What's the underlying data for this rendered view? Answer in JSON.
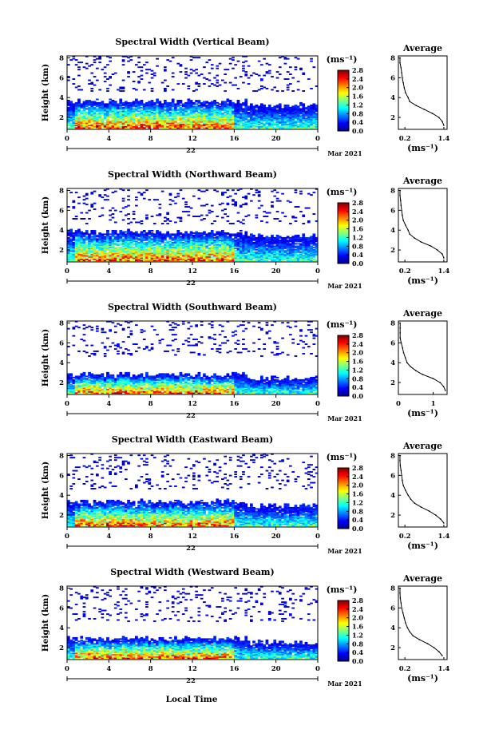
{
  "figure": {
    "xlabel_bottom": "Local Time",
    "day_label": "22",
    "month_label": "Mar 2021",
    "ylabel": "Height (km)",
    "unit_label": "(ms⁻¹)",
    "avg_title": "Average",
    "avg_xlabel": "(ms⁻¹)"
  },
  "colors": {
    "jet": [
      "#000080",
      "#0000ff",
      "#0080ff",
      "#00ffff",
      "#80ff80",
      "#ffff00",
      "#ff8000",
      "#ff0000",
      "#800000"
    ]
  },
  "chart_data": [
    {
      "type": "heatmap",
      "title": "Spectral Width (Vertical Beam)",
      "xlabel": "Local Time",
      "ylabel": "Height (km)",
      "xlim": [
        0,
        24
      ],
      "ylim": [
        0.8,
        8.2
      ],
      "xticks": [
        "0",
        "4",
        "8",
        "12",
        "16",
        "20",
        "0"
      ],
      "yticks": [
        "2",
        "4",
        "6",
        "8"
      ],
      "colorbar": {
        "label": "(ms⁻¹)",
        "range": [
          0,
          2.8
        ],
        "ticks": [
          "0.0",
          "0.4",
          "0.8",
          "1.2",
          "1.6",
          "2.0",
          "2.4",
          "2.8"
        ]
      },
      "layer_top_km": 3.6,
      "average": {
        "title": "Average",
        "xlabel": "(ms⁻¹)",
        "xlim": [
          0,
          1.5
        ],
        "xticks": [
          "0.2",
          "1.4"
        ],
        "ylim": [
          0.8,
          8.2
        ],
        "yticks": [
          "2",
          "4",
          "6",
          "8"
        ],
        "profile": [
          {
            "h": 1.2,
            "v": 1.4
          },
          {
            "h": 1.6,
            "v": 1.35
          },
          {
            "h": 2.0,
            "v": 1.25
          },
          {
            "h": 2.4,
            "v": 1.05
          },
          {
            "h": 2.8,
            "v": 0.8
          },
          {
            "h": 3.2,
            "v": 0.55
          },
          {
            "h": 3.6,
            "v": 0.35
          },
          {
            "h": 4.0,
            "v": 0.3
          },
          {
            "h": 4.5,
            "v": 0.22
          },
          {
            "h": 5.0,
            "v": 0.18
          },
          {
            "h": 5.5,
            "v": 0.15
          },
          {
            "h": 6.0,
            "v": 0.12
          },
          {
            "h": 6.5,
            "v": 0.1
          },
          {
            "h": 7.0,
            "v": 0.08
          },
          {
            "h": 7.5,
            "v": 0.05
          },
          {
            "h": 8.0,
            "v": 0.05
          }
        ]
      }
    },
    {
      "type": "heatmap",
      "title": "Spectral Width (Northward Beam)",
      "xlabel": "Local Time",
      "ylabel": "Height (km)",
      "xlim": [
        0,
        24
      ],
      "ylim": [
        0.8,
        8.2
      ],
      "xticks": [
        "0",
        "4",
        "8",
        "12",
        "16",
        "20",
        "0"
      ],
      "yticks": [
        "2",
        "4",
        "6",
        "8"
      ],
      "colorbar": {
        "label": "(ms⁻¹)",
        "range": [
          0,
          2.8
        ],
        "ticks": [
          "0.0",
          "0.4",
          "0.8",
          "1.2",
          "1.6",
          "2.0",
          "2.4",
          "2.8"
        ]
      },
      "layer_top_km": 3.8,
      "average": {
        "title": "Average",
        "xlabel": "(ms⁻¹)",
        "xlim": [
          0,
          1.5
        ],
        "xticks": [
          "0.2",
          "1.4"
        ],
        "ylim": [
          0.8,
          8.2
        ],
        "yticks": [
          "2",
          "4",
          "6",
          "8"
        ],
        "profile": [
          {
            "h": 1.2,
            "v": 1.4
          },
          {
            "h": 1.6,
            "v": 1.35
          },
          {
            "h": 2.0,
            "v": 1.2
          },
          {
            "h": 2.4,
            "v": 1.0
          },
          {
            "h": 2.8,
            "v": 0.7
          },
          {
            "h": 3.2,
            "v": 0.5
          },
          {
            "h": 3.6,
            "v": 0.35
          },
          {
            "h": 4.0,
            "v": 0.3
          },
          {
            "h": 4.5,
            "v": 0.22
          },
          {
            "h": 5.0,
            "v": 0.15
          },
          {
            "h": 5.5,
            "v": 0.12
          },
          {
            "h": 6.0,
            "v": 0.1
          },
          {
            "h": 6.5,
            "v": 0.08
          },
          {
            "h": 7.0,
            "v": 0.07
          },
          {
            "h": 7.5,
            "v": 0.05
          },
          {
            "h": 8.0,
            "v": 0.05
          }
        ]
      }
    },
    {
      "type": "heatmap",
      "title": "Spectral Width (Southward Beam)",
      "xlabel": "Local Time",
      "ylabel": "Height (km)",
      "xlim": [
        0,
        24
      ],
      "ylim": [
        0.8,
        8.2
      ],
      "xticks": [
        "0",
        "4",
        "8",
        "12",
        "16",
        "20",
        "0"
      ],
      "yticks": [
        "2",
        "4",
        "6",
        "8"
      ],
      "colorbar": {
        "label": "(ms⁻¹)",
        "range": [
          0,
          2.8
        ],
        "ticks": [
          "0.0",
          "0.4",
          "0.8",
          "1.2",
          "1.6",
          "2.0",
          "2.4",
          "2.8"
        ]
      },
      "layer_top_km": 2.8,
      "average": {
        "title": "Average",
        "xlabel": "(ms⁻¹)",
        "xlim": [
          0,
          1.4
        ],
        "xticks": [
          "0",
          "1"
        ],
        "ylim": [
          0.8,
          8.2
        ],
        "yticks": [
          "2",
          "4",
          "6",
          "8"
        ],
        "profile": [
          {
            "h": 1.2,
            "v": 1.35
          },
          {
            "h": 1.6,
            "v": 1.3
          },
          {
            "h": 2.0,
            "v": 1.2
          },
          {
            "h": 2.4,
            "v": 1.0
          },
          {
            "h": 2.8,
            "v": 0.7
          },
          {
            "h": 3.2,
            "v": 0.5
          },
          {
            "h": 3.6,
            "v": 0.35
          },
          {
            "h": 4.0,
            "v": 0.25
          },
          {
            "h": 4.5,
            "v": 0.2
          },
          {
            "h": 5.0,
            "v": 0.15
          },
          {
            "h": 5.5,
            "v": 0.12
          },
          {
            "h": 6.0,
            "v": 0.08
          },
          {
            "h": 6.5,
            "v": 0.05
          },
          {
            "h": 7.0,
            "v": 0.05
          },
          {
            "h": 7.5,
            "v": 0.05
          },
          {
            "h": 8.0,
            "v": 0.05
          }
        ]
      }
    },
    {
      "type": "heatmap",
      "title": "Spectral Width (Eastward Beam)",
      "xlabel": "Local Time",
      "ylabel": "Height (km)",
      "xlim": [
        0,
        24
      ],
      "ylim": [
        0.8,
        8.2
      ],
      "xticks": [
        "0",
        "4",
        "8",
        "12",
        "16",
        "20",
        "0"
      ],
      "yticks": [
        "2",
        "4",
        "6",
        "8"
      ],
      "colorbar": {
        "label": "(ms⁻¹)",
        "range": [
          0,
          2.8
        ],
        "ticks": [
          "0.0",
          "0.4",
          "0.8",
          "1.2",
          "1.6",
          "2.0",
          "2.4",
          "2.8"
        ]
      },
      "layer_top_km": 3.3,
      "average": {
        "title": "Average",
        "xlabel": "(ms⁻¹)",
        "xlim": [
          0,
          1.5
        ],
        "xticks": [
          "0.2",
          "1.4"
        ],
        "ylim": [
          0.8,
          8.2
        ],
        "yticks": [
          "2",
          "4",
          "6",
          "8"
        ],
        "profile": [
          {
            "h": 1.2,
            "v": 1.4
          },
          {
            "h": 1.6,
            "v": 1.3
          },
          {
            "h": 2.0,
            "v": 1.15
          },
          {
            "h": 2.4,
            "v": 0.95
          },
          {
            "h": 2.8,
            "v": 0.7
          },
          {
            "h": 3.2,
            "v": 0.5
          },
          {
            "h": 3.6,
            "v": 0.38
          },
          {
            "h": 4.0,
            "v": 0.3
          },
          {
            "h": 4.5,
            "v": 0.22
          },
          {
            "h": 5.0,
            "v": 0.15
          },
          {
            "h": 5.5,
            "v": 0.12
          },
          {
            "h": 6.0,
            "v": 0.1
          },
          {
            "h": 6.5,
            "v": 0.08
          },
          {
            "h": 7.0,
            "v": 0.06
          },
          {
            "h": 7.5,
            "v": 0.05
          },
          {
            "h": 8.0,
            "v": 0.05
          }
        ]
      }
    },
    {
      "type": "heatmap",
      "title": "Spectral Width (Westward Beam)",
      "xlabel": "Local Time",
      "ylabel": "Height (km)",
      "xlim": [
        0,
        24
      ],
      "ylim": [
        0.8,
        8.2
      ],
      "xticks": [
        "0",
        "4",
        "8",
        "12",
        "16",
        "20",
        "0"
      ],
      "yticks": [
        "2",
        "4",
        "6",
        "8"
      ],
      "colorbar": {
        "label": "(ms⁻¹)",
        "range": [
          0,
          2.8
        ],
        "ticks": [
          "0.0",
          "0.4",
          "0.8",
          "1.2",
          "1.6",
          "2.0",
          "2.4",
          "2.8"
        ]
      },
      "layer_top_km": 2.9,
      "average": {
        "title": "Average",
        "xlabel": "(ms⁻¹)",
        "xlim": [
          0,
          1.5
        ],
        "xticks": [
          "0.2",
          "1.4"
        ],
        "ylim": [
          0.8,
          8.2
        ],
        "yticks": [
          "2",
          "4",
          "6",
          "8"
        ],
        "profile": [
          {
            "h": 1.2,
            "v": 1.35
          },
          {
            "h": 1.6,
            "v": 1.25
          },
          {
            "h": 2.0,
            "v": 1.1
          },
          {
            "h": 2.4,
            "v": 0.9
          },
          {
            "h": 2.8,
            "v": 0.65
          },
          {
            "h": 3.2,
            "v": 0.45
          },
          {
            "h": 3.6,
            "v": 0.35
          },
          {
            "h": 4.0,
            "v": 0.28
          },
          {
            "h": 4.5,
            "v": 0.22
          },
          {
            "h": 5.0,
            "v": 0.18
          },
          {
            "h": 5.5,
            "v": 0.14
          },
          {
            "h": 6.0,
            "v": 0.1
          },
          {
            "h": 6.5,
            "v": 0.08
          },
          {
            "h": 7.0,
            "v": 0.06
          },
          {
            "h": 7.5,
            "v": 0.05
          },
          {
            "h": 8.0,
            "v": 0.05
          }
        ]
      }
    }
  ]
}
